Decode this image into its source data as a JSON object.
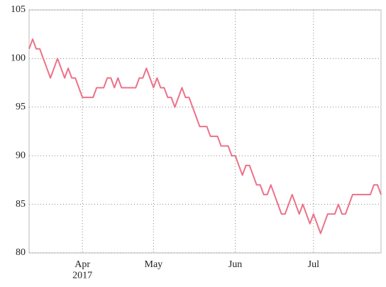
{
  "chart_data": {
    "type": "line",
    "categories": [
      null,
      null,
      null,
      null,
      null,
      null,
      null,
      null,
      null,
      null,
      null,
      null,
      null,
      null,
      null,
      "Apr\n2017",
      null,
      null,
      null,
      null,
      null,
      null,
      null,
      null,
      null,
      null,
      null,
      null,
      null,
      null,
      null,
      null,
      null,
      null,
      null,
      "May",
      null,
      null,
      null,
      null,
      null,
      null,
      null,
      null,
      null,
      null,
      null,
      null,
      null,
      null,
      null,
      null,
      null,
      null,
      null,
      null,
      null,
      null,
      "Jun",
      null,
      null,
      null,
      null,
      null,
      null,
      null,
      null,
      null,
      null,
      null,
      null,
      null,
      null,
      null,
      null,
      null,
      null,
      null,
      null,
      null,
      "Jul",
      null,
      null,
      null,
      null,
      null,
      null,
      null,
      null,
      null,
      null,
      null,
      null,
      null,
      null,
      null,
      null,
      null,
      null,
      null
    ],
    "values": [
      101,
      102,
      101,
      101,
      100,
      99,
      98,
      99,
      100,
      99,
      98,
      99,
      98,
      98,
      97,
      96,
      96,
      96,
      96,
      97,
      97,
      97,
      98,
      98,
      97,
      98,
      97,
      97,
      97,
      97,
      97,
      98,
      98,
      99,
      98,
      97,
      98,
      97,
      97,
      96,
      96,
      95,
      96,
      97,
      96,
      96,
      95,
      94,
      93,
      93,
      93,
      92,
      92,
      92,
      91,
      91,
      91,
      90,
      90,
      89,
      88,
      89,
      89,
      88,
      87,
      87,
      86,
      86,
      87,
      86,
      85,
      84,
      84,
      85,
      86,
      85,
      84,
      85,
      84,
      83,
      84,
      83,
      82,
      83,
      84,
      84,
      84,
      85,
      84,
      84,
      85,
      86,
      86,
      86,
      86,
      86,
      86,
      87,
      87,
      86
    ],
    "color": "#ec7289",
    "ylim": [
      80,
      105
    ],
    "yticks": [
      80,
      85,
      90,
      95,
      100,
      105
    ],
    "grid": true
  }
}
